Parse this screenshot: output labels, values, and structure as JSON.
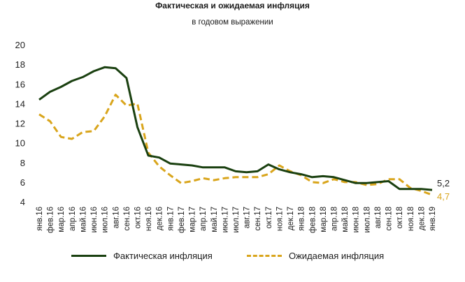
{
  "chart_data": {
    "type": "line",
    "title": "Фактическая и ожидаемая инфляция",
    "subtitle": "в годовом выражении",
    "ylim": [
      4,
      20
    ],
    "yticks": [
      "4",
      "6",
      "8",
      "10",
      "12",
      "14",
      "16",
      "18",
      "20"
    ],
    "grid": false,
    "legend_position": "bottom",
    "categories": [
      "янв.16",
      "фев.16",
      "мар.16",
      "апр.16",
      "май.16",
      "июн.16",
      "июл.16",
      "авг.16",
      "сен.16",
      "окт.16",
      "ноя.16",
      "дек.16",
      "янв.17",
      "фев.17",
      "мар.17",
      "апр.17",
      "май.17",
      "июн.17",
      "июл.17",
      "авг.17",
      "сен.17",
      "окт.17",
      "ноя.17",
      "дек.17",
      "янв.18",
      "фев.18",
      "мар.18",
      "апр.18",
      "май.18",
      "июн.18",
      "июл.18",
      "авг.18",
      "сен.18",
      "окт.18",
      "ноя.18",
      "дек.18",
      "янв.19"
    ],
    "series": [
      {
        "name": "Фактическая инфляция",
        "color": "#1a4010",
        "style": "solid",
        "values": [
          14.4,
          15.2,
          15.7,
          16.3,
          16.7,
          17.3,
          17.7,
          17.6,
          16.6,
          11.6,
          8.7,
          8.5,
          7.9,
          7.8,
          7.7,
          7.5,
          7.5,
          7.5,
          7.1,
          7.0,
          7.1,
          7.8,
          7.3,
          7.0,
          6.8,
          6.5,
          6.6,
          6.5,
          6.2,
          5.9,
          5.9,
          6.0,
          6.1,
          5.3,
          5.3,
          5.3,
          5.2
        ],
        "end_label": "5,2"
      },
      {
        "name": "Ожидаемая инфляция",
        "color": "#d9a51c",
        "style": "dashed",
        "values": [
          12.9,
          12.2,
          10.6,
          10.4,
          11.1,
          11.2,
          12.7,
          14.9,
          13.8,
          14.0,
          9.0,
          7.6,
          6.7,
          5.9,
          6.1,
          6.4,
          6.2,
          6.4,
          6.5,
          6.5,
          6.5,
          6.8,
          7.7,
          7.1,
          6.7,
          6.0,
          5.9,
          6.3,
          6.0,
          6.0,
          5.7,
          5.8,
          6.3,
          6.3,
          5.4,
          5.1,
          4.7
        ],
        "end_label": "4,7"
      }
    ]
  }
}
